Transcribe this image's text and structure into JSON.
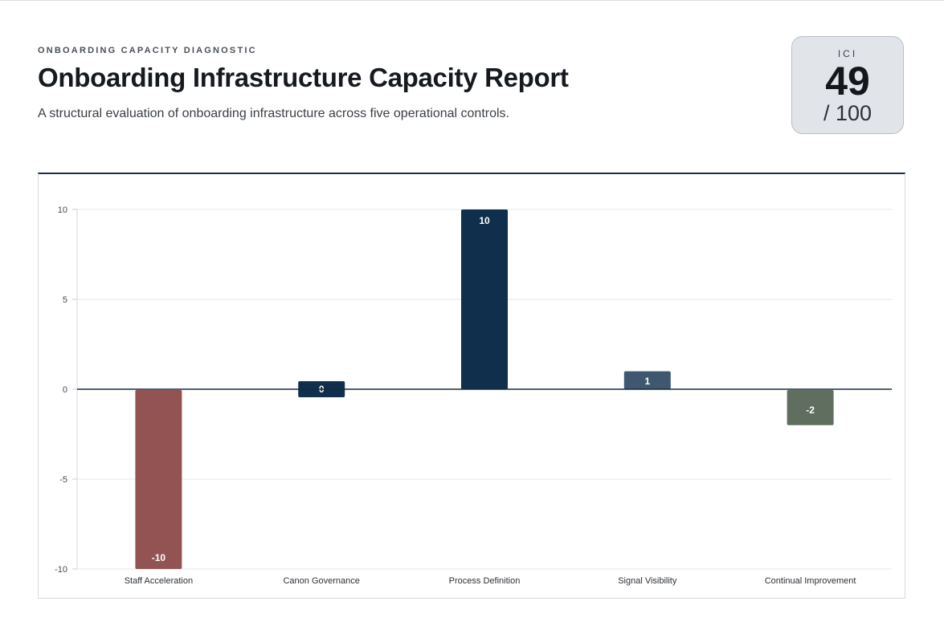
{
  "header": {
    "eyebrow": "ONBOARDING CAPACITY DIAGNOSTIC",
    "title": "Onboarding Infrastructure Capacity Report",
    "subtitle": "A structural evaluation of onboarding infrastructure across five operational controls."
  },
  "score": {
    "label": "ICI",
    "value": "49",
    "max": "/ 100"
  },
  "chart_data": {
    "type": "bar",
    "categories": [
      "Staff Acceleration",
      "Canon Governance",
      "Process Definition",
      "Signal Visibility",
      "Continual Improvement"
    ],
    "values": [
      -10,
      0,
      10,
      1,
      -2
    ],
    "colors": [
      "#935353",
      "#102f4c",
      "#102f4c",
      "#3f5870",
      "#5f6e5f"
    ],
    "ylim": [
      -10,
      10
    ],
    "yticks": [
      10,
      5,
      0,
      -5,
      -10
    ],
    "grid": true,
    "title": "",
    "xlabel": "",
    "ylabel": ""
  }
}
